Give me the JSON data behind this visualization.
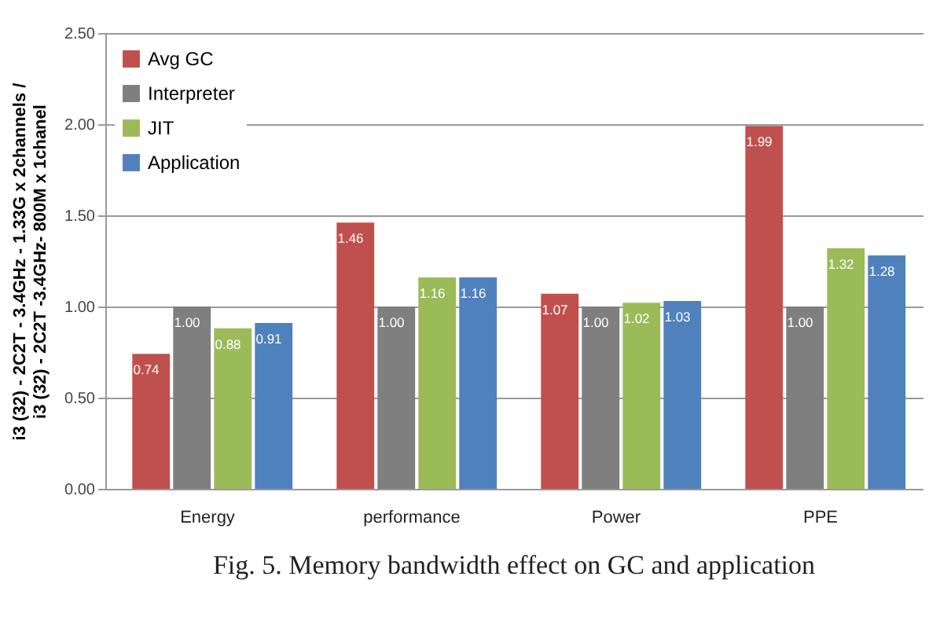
{
  "chart_data": {
    "type": "bar",
    "ylabel": "i3 (32) - 2C2T - 3.4GHz - 1.33G x 2channels /\ni3 (32) - 2C2T -3.4GHz- 800M x 1chanel",
    "annotations": [
      "Fig. 5. Memory bandwidth effect on GC and application"
    ],
    "categories": [
      "Energy",
      "performance",
      "Power",
      "PPE"
    ],
    "series": [
      {
        "name": "Avg GC",
        "color": "#c0504d",
        "values": [
          0.74,
          1.46,
          1.07,
          1.99
        ],
        "value_labels": [
          "0.74",
          "1.46",
          "1.07",
          "1.99"
        ]
      },
      {
        "name": "Interpreter",
        "color": "#7f7f7f",
        "values": [
          1.0,
          1.0,
          1.0,
          1.0
        ],
        "value_labels": [
          "1.00",
          "1.00",
          "1.00",
          "1.00"
        ]
      },
      {
        "name": "JIT",
        "color": "#9bbb59",
        "values": [
          0.88,
          1.16,
          1.02,
          1.32
        ],
        "value_labels": [
          "0.88",
          "1.16",
          "1.02",
          "1.32"
        ]
      },
      {
        "name": "Application",
        "color": "#4f81bd",
        "values": [
          0.91,
          1.16,
          1.03,
          1.28
        ],
        "value_labels": [
          "0.91",
          "1.16",
          "1.03",
          "1.28"
        ]
      }
    ],
    "ylim": [
      0,
      2.5
    ],
    "yticks": [
      {
        "value": 0,
        "label": "0.00"
      },
      {
        "value": 0.5,
        "label": "0.50"
      },
      {
        "value": 1,
        "label": "1.00"
      },
      {
        "value": 1.5,
        "label": "1.50"
      },
      {
        "value": 2,
        "label": "2.00"
      },
      {
        "value": 2.5,
        "label": "2.50"
      }
    ],
    "grid": "y",
    "legend": "top left"
  }
}
